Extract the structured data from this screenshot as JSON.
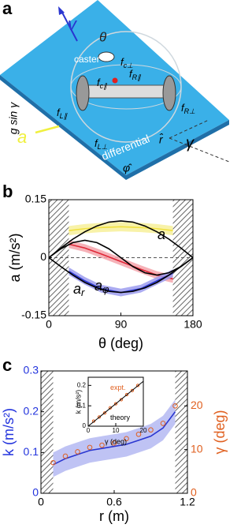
{
  "panel_labels": [
    "a",
    "b",
    "c"
  ],
  "diagram": {
    "v": "v",
    "theta": "θ",
    "caster": "caster",
    "fc_perp": {
      "base": "f",
      "sub": "c⊥"
    },
    "fc_par": {
      "base": "f",
      "sub": "c∥"
    },
    "fR_par": {
      "base": "f",
      "sub": "R∥"
    },
    "fR_perp": {
      "base": "f",
      "sub": "R⊥"
    },
    "fL_par": {
      "base": "f",
      "sub": "L∥"
    },
    "fL_perp": {
      "base": "f",
      "sub": "L⊥"
    },
    "g": "g sin γ",
    "a": "a",
    "differential": "differential",
    "phi": "φ̂",
    "r": "r̂",
    "gamma": "γ"
  },
  "chart_data": [
    {
      "type": "line",
      "xlabel": "θ (deg)",
      "ylabel": "a (m/s²)",
      "xlim": [
        0,
        180
      ],
      "ylim": [
        -0.15,
        0.15
      ],
      "xticks": [
        0,
        90,
        180
      ],
      "yticks": [
        -0.15,
        0,
        0.15
      ],
      "hatched": [
        [
          0,
          25
        ],
        [
          155,
          180
        ]
      ],
      "zero_line": true,
      "series": [
        {
          "style": "band",
          "color": "#f0e040",
          "fill": "#f7f09a",
          "x": [
            25,
            45,
            65,
            90,
            115,
            135,
            155
          ],
          "values": [
            0.07,
            0.075,
            0.078,
            0.08,
            0.078,
            0.075,
            0.07
          ],
          "upper": [
            0.082,
            0.087,
            0.09,
            0.092,
            0.09,
            0.087,
            0.082
          ],
          "lower": [
            0.058,
            0.063,
            0.066,
            0.068,
            0.066,
            0.063,
            0.058
          ]
        },
        {
          "style": "band",
          "color": "#e02838",
          "fill": "#f4a4ac",
          "x": [
            25,
            45,
            65,
            90,
            115,
            135,
            155
          ],
          "values": [
            0.035,
            0.025,
            0.01,
            -0.01,
            -0.03,
            -0.045,
            -0.055
          ],
          "upper": [
            0.045,
            0.035,
            0.02,
            0.0,
            -0.02,
            -0.035,
            -0.045
          ],
          "lower": [
            0.025,
            0.015,
            0.0,
            -0.02,
            -0.04,
            -0.055,
            -0.065
          ]
        },
        {
          "style": "band",
          "color": "#2a36d0",
          "fill": "#9c9cee",
          "x": [
            25,
            45,
            65,
            90,
            115,
            135,
            155
          ],
          "values": [
            -0.035,
            -0.06,
            -0.08,
            -0.09,
            -0.08,
            -0.06,
            -0.04
          ],
          "upper": [
            -0.025,
            -0.05,
            -0.07,
            -0.08,
            -0.07,
            -0.05,
            -0.03
          ],
          "lower": [
            -0.045,
            -0.07,
            -0.09,
            -0.1,
            -0.09,
            -0.07,
            -0.05
          ]
        },
        {
          "style": "line",
          "name": "a",
          "color": "#000000",
          "x": [
            0,
            15,
            30,
            45,
            60,
            75,
            90,
            105,
            120,
            135,
            150,
            165,
            180
          ],
          "values": [
            0,
            0.025,
            0.048,
            0.067,
            0.082,
            0.092,
            0.095,
            0.092,
            0.082,
            0.067,
            0.048,
            0.025,
            0
          ]
        },
        {
          "style": "line",
          "name": "a",
          "name_sub": "φ",
          "color": "#000000",
          "x": [
            0,
            15,
            30,
            45,
            60,
            75,
            90,
            105,
            120,
            135,
            150,
            165,
            180
          ],
          "values": [
            0,
            0.023,
            0.039,
            0.045,
            0.039,
            0.023,
            0,
            -0.023,
            -0.039,
            -0.045,
            -0.039,
            -0.023,
            0
          ]
        },
        {
          "style": "line",
          "name": "a",
          "name_sub": "r",
          "color": "#000000",
          "x": [
            0,
            15,
            30,
            45,
            60,
            75,
            90,
            105,
            120,
            135,
            150,
            165,
            180
          ],
          "values": [
            0,
            -0.023,
            -0.045,
            -0.064,
            -0.078,
            -0.087,
            -0.09,
            -0.087,
            -0.078,
            -0.064,
            -0.045,
            -0.023,
            0
          ]
        }
      ]
    },
    {
      "type": "line",
      "xlabel": "r (m)",
      "ylabel": "k (m/s²)",
      "y2label": "γ (deg)",
      "ycolor": "#2233dd",
      "y2color": "#e06020",
      "xlim": [
        0,
        1.2
      ],
      "ylim": [
        0,
        0.3
      ],
      "y2lim": [
        0,
        28
      ],
      "xticks": [
        0,
        0.6,
        1.2
      ],
      "yticks": [
        0,
        0.1,
        0.2,
        0.3
      ],
      "y2ticks": [
        0,
        10,
        20
      ],
      "hatched": [
        [
          0,
          0.1
        ],
        [
          1.1,
          1.2
        ]
      ],
      "series": [
        {
          "style": "band",
          "color": "#2a36d0",
          "fill": "#b4b8f2",
          "x": [
            0.1,
            0.2,
            0.3,
            0.4,
            0.5,
            0.6,
            0.7,
            0.8,
            0.9,
            1.0,
            1.1
          ],
          "values": [
            0.07,
            0.085,
            0.095,
            0.105,
            0.11,
            0.115,
            0.12,
            0.13,
            0.14,
            0.16,
            0.2
          ],
          "upper": [
            0.1,
            0.115,
            0.125,
            0.135,
            0.14,
            0.145,
            0.15,
            0.16,
            0.17,
            0.19,
            0.23
          ],
          "lower": [
            0.04,
            0.055,
            0.065,
            0.075,
            0.08,
            0.085,
            0.09,
            0.1,
            0.11,
            0.13,
            0.17
          ]
        },
        {
          "style": "scatter",
          "axis": "y2",
          "color": "#e06020",
          "x": [
            0.1,
            0.2,
            0.3,
            0.4,
            0.5,
            0.6,
            0.7,
            0.8,
            0.9,
            1.0,
            1.1
          ],
          "values": [
            7,
            8.5,
            9.5,
            10.5,
            11,
            11.5,
            12.5,
            13.5,
            14.5,
            16,
            20
          ]
        }
      ]
    },
    {
      "type": "line",
      "xlabel": "γ (deg)",
      "ylabel": "k (m/s²)",
      "xlim": [
        0,
        20
      ],
      "ylim": [
        0,
        0.24
      ],
      "xticks": [
        0,
        10,
        20
      ],
      "yticks": [
        0,
        0.1,
        0.2
      ],
      "series": [
        {
          "style": "scatter",
          "name": "expt.",
          "color": "#e06020",
          "x": [
            2,
            4,
            6,
            8,
            10,
            12,
            14,
            16,
            18
          ],
          "values": [
            0.025,
            0.045,
            0.065,
            0.09,
            0.11,
            0.13,
            0.155,
            0.175,
            0.2
          ]
        },
        {
          "style": "line",
          "name": "theory",
          "color": "#000000",
          "x": [
            0,
            20
          ],
          "values": [
            0,
            0.22
          ]
        }
      ]
    }
  ]
}
